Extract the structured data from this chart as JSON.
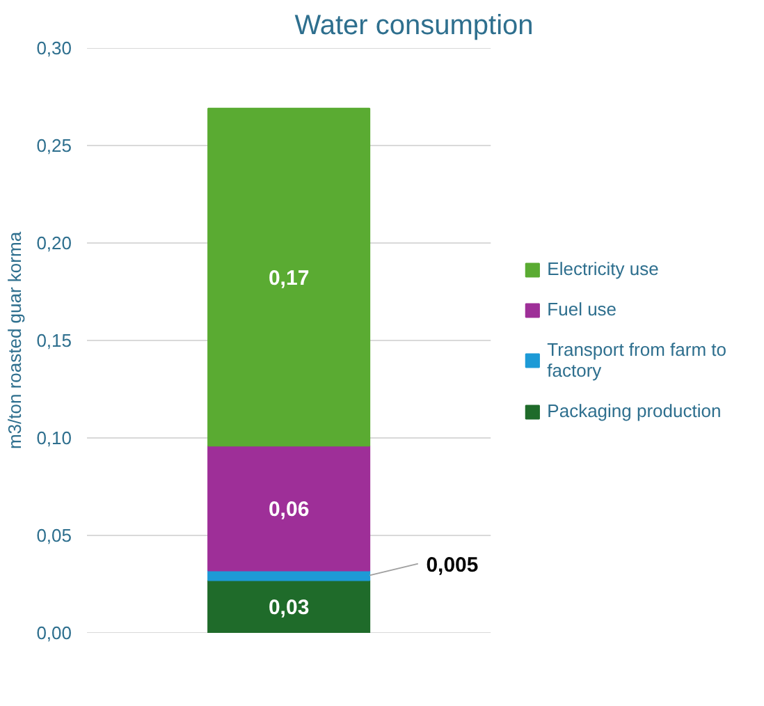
{
  "chart_data": {
    "type": "bar",
    "stacked": true,
    "title": "Water consumption",
    "ylabel": "m3/ton roasted guar korma",
    "categories": [
      null
    ],
    "series": [
      {
        "name": "Packaging production",
        "color": "#1f6b2a",
        "values": [
          0.027
        ],
        "value_labels": [
          "0,03"
        ]
      },
      {
        "name": "Transport from farm to factory",
        "color": "#1d9ad6",
        "values": [
          0.005
        ],
        "value_labels": [
          "0,005"
        ]
      },
      {
        "name": "Fuel use",
        "color": "#9e2f98",
        "values": [
          0.064
        ],
        "value_labels": [
          "0,06"
        ]
      },
      {
        "name": "Electricity use",
        "color": "#5aab32",
        "values": [
          0.173
        ],
        "value_labels": [
          "0,17"
        ]
      }
    ],
    "ylim": [
      0,
      0.3
    ],
    "yticks": [
      {
        "value": 0,
        "label": "0,00"
      },
      {
        "value": 0.05,
        "label": "0,05"
      },
      {
        "value": 0.1,
        "label": "0,10"
      },
      {
        "value": 0.15,
        "label": "0,15"
      },
      {
        "value": 0.2,
        "label": "0,20"
      },
      {
        "value": 0.25,
        "label": "0,25"
      },
      {
        "value": 0.3,
        "label": "0,30"
      }
    ],
    "grid": "y",
    "legend": "right"
  }
}
